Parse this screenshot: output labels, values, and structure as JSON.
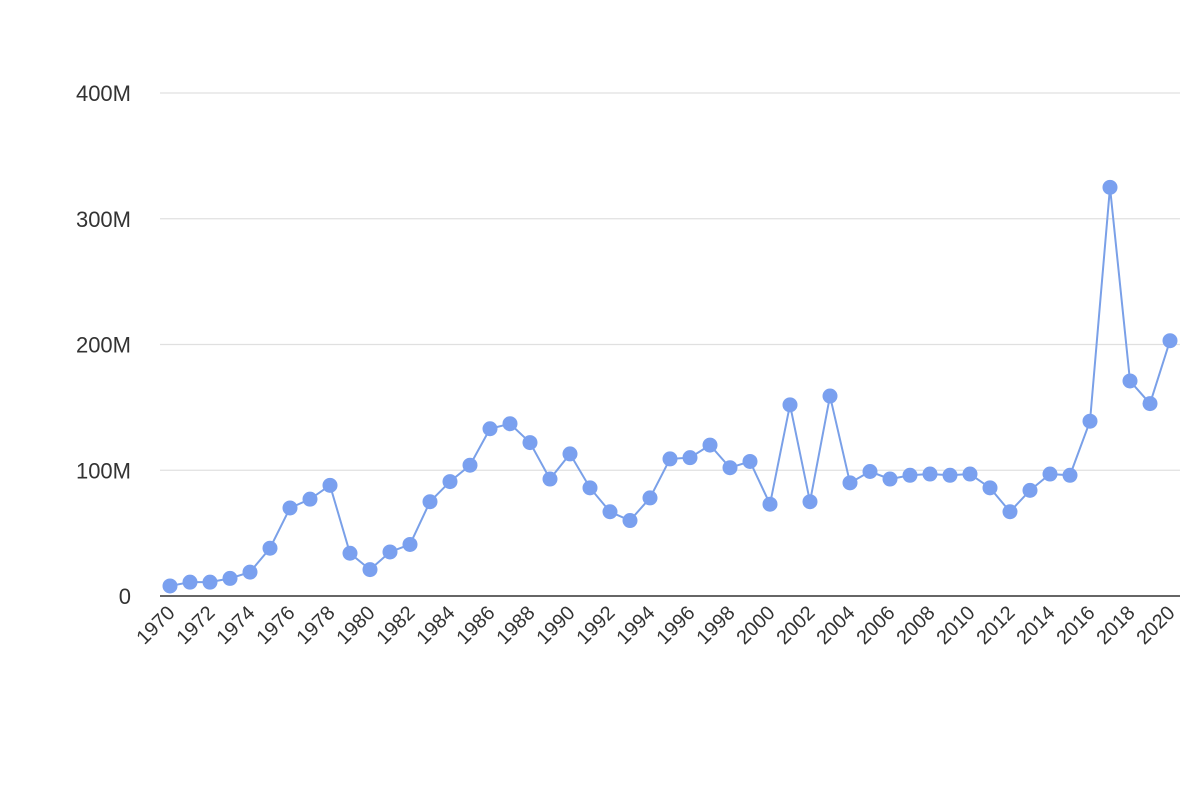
{
  "chart_data": {
    "type": "line",
    "title": "",
    "xlabel": "",
    "ylabel": "",
    "x": [
      1970,
      1971,
      1972,
      1973,
      1974,
      1975,
      1976,
      1977,
      1978,
      1979,
      1980,
      1981,
      1982,
      1983,
      1984,
      1985,
      1986,
      1987,
      1988,
      1989,
      1990,
      1991,
      1992,
      1993,
      1994,
      1995,
      1996,
      1997,
      1998,
      1999,
      2000,
      2001,
      2002,
      2003,
      2004,
      2005,
      2006,
      2007,
      2008,
      2009,
      2010,
      2011,
      2012,
      2013,
      2014,
      2015,
      2016,
      2017,
      2018,
      2019,
      2020
    ],
    "series": [
      {
        "values": [
          8,
          11,
          11,
          14,
          19,
          38,
          70,
          77,
          88,
          34,
          21,
          35,
          41,
          75,
          91,
          104,
          133,
          137,
          122,
          93,
          113,
          86,
          67,
          60,
          78,
          109,
          110,
          120,
          102,
          107,
          73,
          152,
          75,
          159,
          90,
          99,
          93,
          96,
          97,
          96,
          97,
          86,
          67,
          84,
          97,
          96,
          139,
          325,
          171,
          153,
          203
        ]
      }
    ],
    "xticks": [
      "1970",
      "1972",
      "1974",
      "1976",
      "1978",
      "1980",
      "1982",
      "1984",
      "1986",
      "1988",
      "1990",
      "1992",
      "1994",
      "1996",
      "1998",
      "2000",
      "2002",
      "2004",
      "2006",
      "2008",
      "2010",
      "2012",
      "2014",
      "2016",
      "2018",
      "2020"
    ],
    "yticks": [
      {
        "value": 0,
        "label": "0"
      },
      {
        "value": 100,
        "label": "100M"
      },
      {
        "value": 200,
        "label": "200M"
      },
      {
        "value": 300,
        "label": "300M"
      },
      {
        "value": 400,
        "label": "400M"
      }
    ],
    "ylim": [
      0,
      400
    ],
    "y_unit": "millions",
    "grid": true,
    "legend": "none",
    "colors": {
      "line": "#7aa0e8",
      "point": "#7aa0ef",
      "grid": "#e0e0e0",
      "axis": "#333333"
    }
  }
}
